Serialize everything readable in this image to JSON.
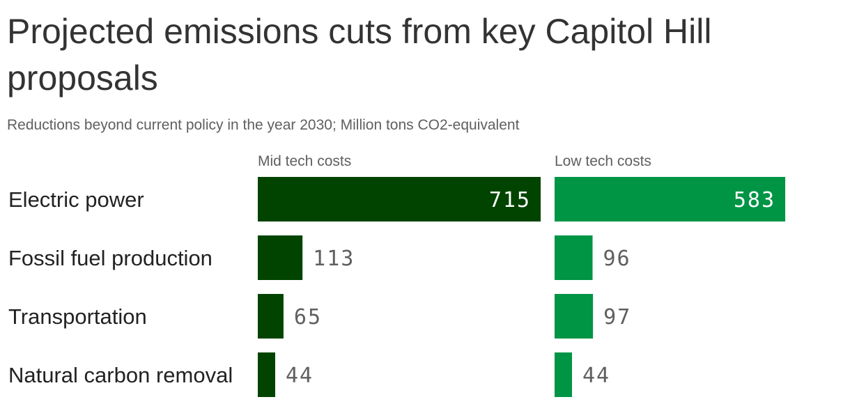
{
  "chart_data": {
    "type": "bar",
    "orientation": "horizontal",
    "title": "Projected emissions cuts from key Capitol Hill proposals",
    "subtitle": "Reductions beyond current policy in the year 2030; Million tons CO2-equivalent",
    "categories": [
      "Electric power",
      "Fossil fuel production",
      "Transportation",
      "Natural carbon removal"
    ],
    "series": [
      {
        "name": "Mid tech costs",
        "values": [
          715,
          113,
          65,
          44
        ],
        "color": "#004400"
      },
      {
        "name": "Low tech costs",
        "values": [
          583,
          96,
          97,
          44
        ],
        "color": "#009445"
      }
    ],
    "xlim": [
      0,
      715
    ],
    "grid": false,
    "legend": "panel headers above each column",
    "label_color_inside": "#ffffff",
    "label_color_outside": "#5f5f5f"
  }
}
